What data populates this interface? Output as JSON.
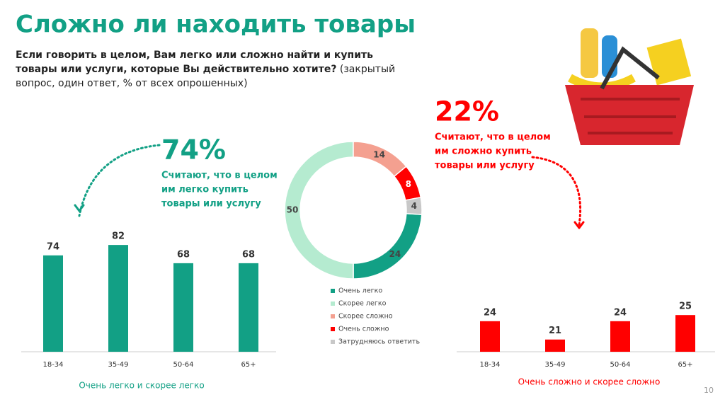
{
  "title": "Сложно ли находить товары",
  "question": {
    "bold": "Если говорить в целом, Вам легко или сложно найти и купить товары или услуги, которые Вы действительно хотите?",
    "normal": " (закрытый вопрос, один ответ, % от всех опрошенных)"
  },
  "callouts": [
    {
      "value": "74%",
      "lines": [
        "Считают, что в целом",
        "им легко купить",
        "товары или услугу"
      ],
      "color": "#12a085"
    },
    {
      "value": "22%",
      "lines": [
        "Считают, что в целом",
        "им сложно купить",
        "товары или услугу"
      ],
      "color": "#ff0000"
    }
  ],
  "page_number": "10",
  "chart_data": [
    {
      "type": "bar",
      "caption": "Очень легко и скорее легко",
      "categories": [
        "18-34",
        "35-49",
        "50-64",
        "65+"
      ],
      "values": [
        74,
        82,
        68,
        68
      ],
      "color": "#12a085",
      "ylim": [
        0,
        100
      ]
    },
    {
      "type": "donut",
      "series": [
        {
          "name": "Очень легко",
          "color": "#12a085",
          "values": [
            24
          ]
        },
        {
          "name": "Скорее легко",
          "color": "#b5ebd0",
          "values": [
            50
          ]
        },
        {
          "name": "Скорее сложно",
          "color": "#f4a090",
          "values": [
            14
          ]
        },
        {
          "name": "Очень сложно",
          "color": "#ff0000",
          "values": [
            8
          ]
        },
        {
          "name": "Затрудняюсь ответить",
          "color": "#c8c8c8",
          "values": [
            4
          ]
        }
      ]
    },
    {
      "type": "bar",
      "caption": "Очень сложно и скорее сложно",
      "categories": [
        "18-34",
        "35-49",
        "50-64",
        "65+"
      ],
      "values": [
        24,
        21,
        24,
        25
      ],
      "color": "#ff0000",
      "ylim": [
        19,
        30
      ]
    }
  ]
}
